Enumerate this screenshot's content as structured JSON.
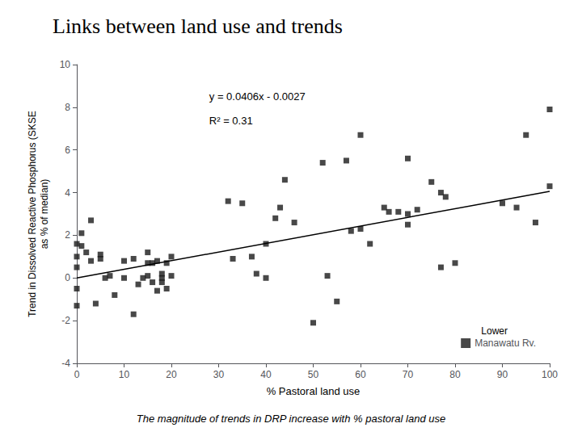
{
  "chart_data": {
    "type": "scatter",
    "title": "Links between land use and trends",
    "subtitle": "The magnitude of trends in DRP increase with % pastoral land use",
    "xlabel": "% Pastoral land use",
    "ylabel": "Trend in Dissolved Reactive Phosphorus (SKSE\nas % of median)",
    "annotations": [
      "y = 0.0406x - 0.0027",
      "R² = 0.31",
      "Lower"
    ],
    "xlim": [
      0,
      100
    ],
    "ylim": [
      -4,
      10
    ],
    "xticks": [
      0,
      10,
      20,
      30,
      40,
      50,
      60,
      70,
      80,
      90,
      100
    ],
    "yticks": [
      -4,
      -2,
      0,
      2,
      4,
      6,
      8,
      10
    ],
    "grid": false,
    "legend": "lower right",
    "series": [
      {
        "name": "Manawatu Rv.",
        "type": "scatter",
        "marker": "square",
        "color": "#1a1a1a",
        "x": [
          0,
          0,
          0,
          0,
          0,
          1,
          1,
          2,
          3,
          3,
          4,
          5,
          5,
          6,
          7,
          8,
          10,
          10,
          12,
          12,
          13,
          14,
          15,
          15,
          15,
          16,
          16,
          17,
          17,
          18,
          18,
          18,
          19,
          19,
          20,
          20,
          32,
          33,
          35,
          37,
          38,
          40,
          40,
          42,
          43,
          44,
          46,
          50,
          52,
          53,
          55,
          57,
          58,
          60,
          60,
          62,
          65,
          66,
          68,
          70,
          70,
          70,
          72,
          75,
          77,
          77,
          78,
          80,
          90,
          93,
          95,
          97,
          100,
          100
        ],
        "values": [
          1.6,
          0.5,
          -0.5,
          -1.3,
          1.0,
          1.5,
          2.1,
          1.2,
          0.8,
          2.7,
          -1.2,
          0.9,
          1.1,
          0.0,
          0.1,
          -0.8,
          0.8,
          0.0,
          0.9,
          -1.7,
          -0.3,
          0.0,
          0.7,
          0.1,
          1.2,
          -0.2,
          0.7,
          0.8,
          -0.6,
          0.0,
          0.2,
          -0.2,
          0.7,
          -0.5,
          0.1,
          1.0,
          3.6,
          0.9,
          3.5,
          1.0,
          0.2,
          1.6,
          0.0,
          2.8,
          3.3,
          4.6,
          2.6,
          -2.1,
          5.4,
          0.1,
          -1.1,
          5.5,
          2.2,
          6.7,
          2.3,
          1.6,
          3.3,
          3.1,
          3.1,
          2.5,
          3.0,
          5.6,
          3.2,
          4.5,
          4.0,
          0.5,
          3.8,
          0.7,
          3.5,
          3.3,
          6.7,
          2.6,
          7.9,
          4.3
        ]
      },
      {
        "type": "line",
        "color": "#000000",
        "x": [
          0,
          100
        ],
        "values": [
          -0.0027,
          4.0573
        ]
      }
    ]
  }
}
